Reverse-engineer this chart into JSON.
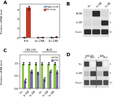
{
  "panel_A": {
    "title": "A",
    "categories": [
      "Fhit",
      "Lin-28A",
      "Lin-28B"
    ],
    "empty_vector": [
      0.05,
      0.04,
      0.05
    ],
    "fhit_vector": [
      3.2,
      0.08,
      0.12
    ],
    "empty_color": "#5b9bd5",
    "fhit_color": "#c0392b",
    "ylabel": "Relative mRNA level",
    "legend_empty": "Empty vector",
    "legend_fhit": "Fhit vector",
    "ylim": [
      0,
      3.6
    ],
    "yticks": [
      0,
      1,
      2,
      3
    ]
  },
  "panel_B": {
    "title": "B",
    "lane_labels": [
      "Fhit",
      "Lin-28A",
      "Lin-28B"
    ],
    "row_labels": [
      "HA-28A",
      "Lin-28B",
      "Vinculin"
    ],
    "mw_labels": [
      "37",
      "37",
      "100"
    ],
    "band_data": [
      [
        0,
        1,
        0
      ],
      [
        0,
        0,
        1
      ],
      [
        1,
        1,
        1
      ]
    ],
    "bg_color": "#c8c8c8",
    "lane_bg": "#b0b0b0",
    "dark_band": "#1a1a1a",
    "light_band": "#888888"
  },
  "panel_C": {
    "title": "C",
    "group_labels": [
      "HEK 293",
      "A549"
    ],
    "subgroups": [
      "Fhit",
      "Lin-28A",
      "Lin-28B",
      "Fhit",
      "Lin-28A",
      "Lin-28B"
    ],
    "siCtrl": [
      1.0,
      1.0,
      1.0,
      1.0,
      1.0,
      1.0
    ],
    "siFhit": [
      0.32,
      0.68,
      0.62,
      0.38,
      0.7,
      0.66
    ],
    "siCtrl_err": [
      0.05,
      0.04,
      0.04,
      0.05,
      0.04,
      0.04
    ],
    "siFhit_err": [
      0.06,
      0.05,
      0.05,
      0.07,
      0.05,
      0.05
    ],
    "siCtrl_color": "#8dc63f",
    "siFhit_color": "#7b68b0",
    "ylabel": "Relative mRNA level",
    "ylim": [
      0,
      1.35
    ],
    "yticks": [
      0.0,
      0.5,
      1.0
    ],
    "legend_ctrl": "si-Ctrl",
    "legend_fhit": "si-Fhit"
  },
  "panel_D": {
    "title": "D",
    "group_labels": [
      "HEK 293",
      "A549"
    ],
    "lane_sublabels": [
      "co",
      "siFhit",
      "co",
      "siFhit"
    ],
    "row_labels": [
      "Fhit",
      "Lin-28B",
      "Vinculin"
    ],
    "mw_labels": [
      "37",
      "37",
      "100"
    ],
    "band_data": [
      [
        0.9,
        0.05,
        0.9,
        0.05
      ],
      [
        0.3,
        0.9,
        0.3,
        0.9
      ],
      [
        0.85,
        0.85,
        0.85,
        0.85
      ]
    ],
    "bg_color": "#c8c8c8",
    "lane_bg": "#b0b0b0"
  },
  "figure_bg": "#ffffff"
}
